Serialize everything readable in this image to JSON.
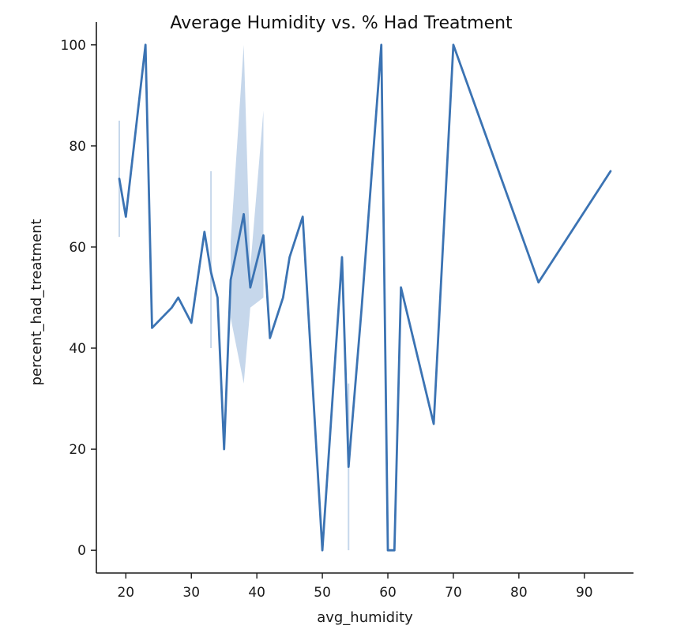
{
  "chart_data": {
    "type": "line",
    "title": "Average Humidity vs. % Had Treatment",
    "xlabel": "avg_humidity",
    "ylabel": "percent_had_treatment",
    "xlim": [
      15.5,
      97.5
    ],
    "ylim": [
      -4.5,
      104.5
    ],
    "xticks": [
      20,
      30,
      40,
      50,
      60,
      70,
      80,
      90
    ],
    "yticks": [
      0,
      20,
      40,
      60,
      80,
      100
    ],
    "grid": false,
    "colors": {
      "line": "#3b73b3",
      "band": "#c6d7eb",
      "axis": "#1a1a1a"
    },
    "series": [
      {
        "x": [
          19,
          20,
          23,
          24,
          27,
          28,
          30,
          32,
          33,
          34,
          35,
          36,
          38,
          39,
          41,
          42,
          44,
          45,
          47,
          50,
          53,
          54,
          56,
          59,
          60,
          61,
          62,
          67,
          70,
          83,
          94
        ],
        "y": [
          73.5,
          66,
          100,
          44,
          48,
          50,
          45,
          63,
          55,
          50,
          20,
          53.5,
          66.5,
          52,
          62.3,
          42,
          50,
          58,
          66,
          0,
          58,
          16.5,
          48,
          100,
          0,
          0,
          52,
          25,
          100,
          53,
          75
        ],
        "ci": [
          {
            "x": 19,
            "lo": 62,
            "hi": 85
          },
          {
            "x": 33,
            "lo": 40,
            "hi": 75
          },
          {
            "x": 36,
            "lo": 46,
            "hi": 61
          },
          {
            "x": 38,
            "lo": 33,
            "hi": 100
          },
          {
            "x": 39,
            "lo": 48,
            "hi": 56
          },
          {
            "x": 41,
            "lo": 50,
            "hi": 87
          },
          {
            "x": 54,
            "lo": 0,
            "hi": 33
          }
        ]
      }
    ]
  }
}
